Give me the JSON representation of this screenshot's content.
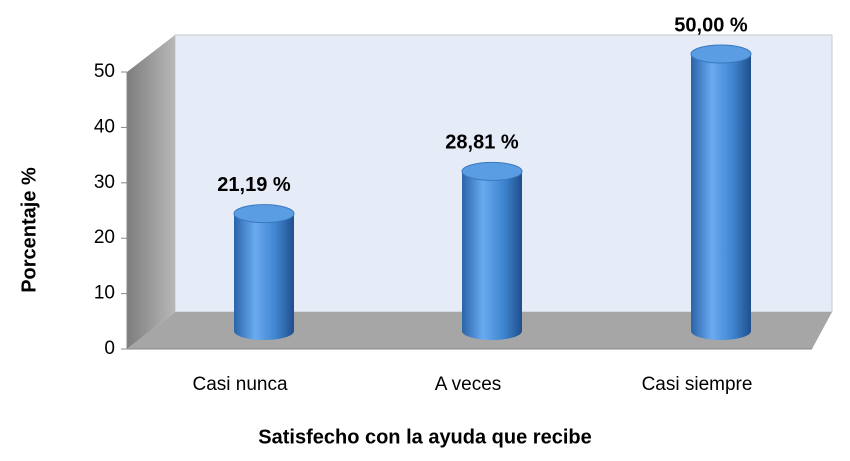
{
  "chart_data": {
    "type": "bar3d",
    "categories": [
      "Casi nunca",
      "A veces",
      "Casi siempre"
    ],
    "values": [
      21.19,
      28.81,
      50
    ],
    "value_labels": [
      "21,19 %",
      "28,81 %",
      "50,00 %"
    ],
    "color": "#4a8fd6",
    "xlabel": "Satisfecho con la ayuda que recibe",
    "ylabel": "Porcentaje %",
    "ylim": [
      0,
      50
    ],
    "yticks": [
      0,
      10,
      20,
      30,
      40,
      50
    ],
    "grid": false
  }
}
